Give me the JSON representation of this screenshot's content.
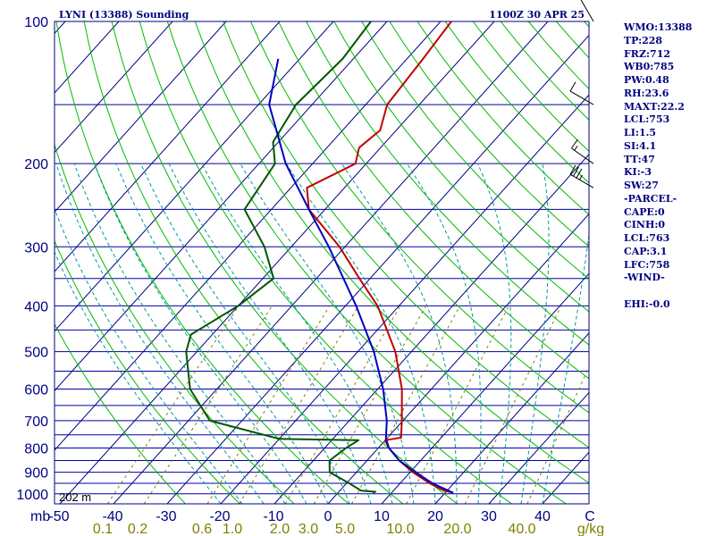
{
  "chart_data": {
    "type": "line",
    "title": "LYNI (13388) Sounding",
    "valid_time": "1100Z 30 APR 25",
    "pressure_levels": [
      100,
      150,
      200,
      250,
      300,
      350,
      400,
      450,
      500,
      550,
      600,
      650,
      700,
      750,
      800,
      850,
      900,
      950,
      1000
    ],
    "pressure_labels": [
      "100",
      "200",
      "300",
      "400",
      "500",
      "600",
      "700",
      "800",
      "900",
      "1000"
    ],
    "pressure_unit": "mb",
    "temperature_ticks": [
      "-50",
      "-40",
      "-30",
      "-20",
      "-10",
      "0",
      "10",
      "20",
      "30",
      "40",
      "C"
    ],
    "mixing_ratio_ticks": [
      "0.1",
      "0.2",
      "0.6",
      "1.0",
      "2.0",
      "3.0",
      "5.0",
      "10.0",
      "20.0",
      "40.0",
      "g/kg"
    ],
    "surface_elevation_label": "202 m",
    "series": [
      {
        "color": "#c00000",
        "points": [
          [
            995,
            21.5
          ],
          [
            985,
            19.5
          ],
          [
            950,
            15.5
          ],
          [
            900,
            10.5
          ],
          [
            850,
            6.0
          ],
          [
            800,
            2.0
          ],
          [
            770,
            0.0
          ],
          [
            760,
            2.5
          ],
          [
            700,
            -0.2
          ],
          [
            600,
            -5.5
          ],
          [
            500,
            -13.0
          ],
          [
            400,
            -24.0
          ],
          [
            350,
            -32.0
          ],
          [
            300,
            -41.0
          ],
          [
            250,
            -53.0
          ],
          [
            225,
            -57.0
          ],
          [
            200,
            -52.0
          ],
          [
            185,
            -54.0
          ],
          [
            170,
            -53.0
          ],
          [
            150,
            -56.0
          ],
          [
            120,
            -57.0
          ],
          [
            100,
            -58.0
          ]
        ]
      },
      {
        "color": "#005500",
        "points": [
          [
            995,
            6.5
          ],
          [
            990,
            6.8
          ],
          [
            985,
            4.0
          ],
          [
            950,
            0.5
          ],
          [
            900,
            -5.0
          ],
          [
            850,
            -7.0
          ],
          [
            800,
            -6.0
          ],
          [
            770,
            -5.0
          ],
          [
            765,
            -20.0
          ],
          [
            700,
            -36.0
          ],
          [
            600,
            -45.0
          ],
          [
            500,
            -52.0
          ],
          [
            460,
            -54.0
          ],
          [
            400,
            -50.0
          ],
          [
            350,
            -48.0
          ],
          [
            300,
            -55.0
          ],
          [
            250,
            -65.0
          ],
          [
            200,
            -67.0
          ],
          [
            180,
            -71.0
          ],
          [
            150,
            -73.0
          ],
          [
            120,
            -72.0
          ],
          [
            100,
            -73.0
          ]
        ]
      },
      {
        "color": "#0000c0",
        "points": [
          [
            995,
            21.5
          ],
          [
            950,
            16.0
          ],
          [
            900,
            11.0
          ],
          [
            850,
            6.0
          ],
          [
            800,
            2.0
          ],
          [
            763,
            -0.2
          ],
          [
            700,
            -3.0
          ],
          [
            600,
            -9.0
          ],
          [
            500,
            -17.0
          ],
          [
            400,
            -28.0
          ],
          [
            300,
            -43.0
          ],
          [
            250,
            -53.0
          ],
          [
            200,
            -65.0
          ],
          [
            150,
            -78.0
          ],
          [
            120,
            -84.0
          ]
        ]
      }
    ],
    "wind_barbs": [
      {
        "pressure": 100,
        "direction_deg": 330,
        "speed_kt": 10
      },
      {
        "pressure": 150,
        "direction_deg": 300,
        "speed_kt": 10
      },
      {
        "pressure": 200,
        "direction_deg": 305,
        "speed_kt": 15
      },
      {
        "pressure": 225,
        "direction_deg": 300,
        "speed_kt": 35
      }
    ]
  },
  "indices": [
    "WMO:13388",
    "TP:228",
    "FRZ:712",
    "WB0:785",
    "PW:0.48",
    "RH:23.6",
    "MAXT:22.2",
    "LCL:753",
    "LI:1.5",
    "SI:4.1",
    "TT:47",
    "KI:-3",
    "SW:27",
    "-PARCEL-",
    "CAPE:0",
    "CINH:0",
    "LCL:763",
    "CAP:3.1",
    "LFC:758",
    "-WIND-",
    "",
    "EHI:-0.0"
  ],
  "colors": {
    "isobar": "#0000a0",
    "isotherm": "#000080",
    "dry_adiabat": "#00bb00",
    "moist_adiabat": "#009999",
    "mixing_ratio": "#808000",
    "labels": "#000080"
  }
}
